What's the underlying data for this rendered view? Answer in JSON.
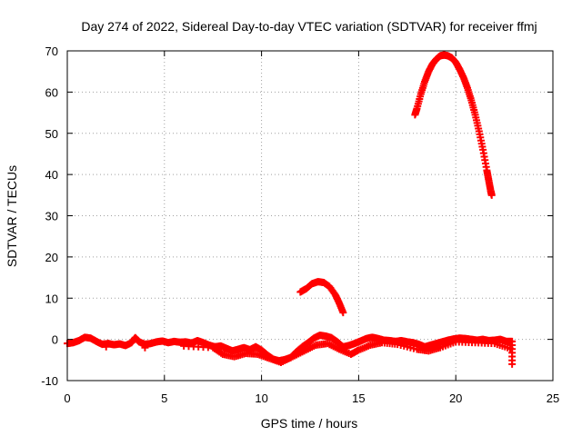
{
  "chart_data": {
    "type": "scatter",
    "title": "Day 274 of 2022, Sidereal Day-to-day VTEC variation (SDTVAR) for receiver ffmj",
    "xlabel": "GPS time / hours",
    "ylabel": "SDTVAR / TECUs",
    "xlim": [
      0,
      25
    ],
    "ylim": [
      -10,
      70
    ],
    "xticks": [
      0,
      5,
      10,
      15,
      20,
      25
    ],
    "yticks": [
      -10,
      0,
      10,
      20,
      30,
      40,
      50,
      60,
      70
    ],
    "xtick_labels": [
      "0",
      "5",
      "10",
      "15",
      "20",
      "25"
    ],
    "ytick_labels": [
      "-10",
      "0",
      "10",
      "20",
      "30",
      "40",
      "50",
      "60",
      "70"
    ],
    "grid": true,
    "marker": "plus",
    "color": "#ff0000",
    "series": [
      {
        "values": [
          [
            0.0,
            -1.0
          ],
          [
            0.3,
            -0.8
          ],
          [
            0.6,
            -0.3
          ],
          [
            0.9,
            0.5
          ],
          [
            1.2,
            0.3
          ],
          [
            1.5,
            -0.5
          ],
          [
            1.8,
            -1.2
          ],
          [
            2.1,
            -1.0
          ],
          [
            2.4,
            -1.3
          ],
          [
            2.7,
            -1.1
          ],
          [
            3.0,
            -1.5
          ],
          [
            3.3,
            -0.8
          ],
          [
            3.5,
            0.4
          ],
          [
            3.7,
            -0.6
          ],
          [
            4.0,
            -1.2
          ],
          [
            4.3,
            -1.0
          ],
          [
            4.6,
            -0.6
          ],
          [
            4.9,
            -0.4
          ],
          [
            5.2,
            -0.8
          ],
          [
            5.5,
            -0.5
          ],
          [
            5.8,
            -0.7
          ],
          [
            6.1,
            -0.6
          ],
          [
            6.4,
            -0.9
          ],
          [
            6.7,
            -0.3
          ],
          [
            7.0,
            -0.8
          ],
          [
            7.3,
            -1.4
          ],
          [
            7.6,
            -1.8
          ],
          [
            7.9,
            -1.6
          ],
          [
            8.2,
            -2.2
          ],
          [
            8.5,
            -2.8
          ],
          [
            8.8,
            -2.4
          ],
          [
            9.1,
            -2.0
          ],
          [
            9.4,
            -2.5
          ],
          [
            9.7,
            -1.8
          ],
          [
            10.0,
            -2.6
          ],
          [
            10.3,
            -3.8
          ],
          [
            10.6,
            -4.8
          ],
          [
            10.9,
            -5.2
          ],
          [
            11.2,
            -4.9
          ],
          [
            11.5,
            -4.4
          ],
          [
            11.8,
            -3.0
          ],
          [
            12.1,
            -1.8
          ],
          [
            12.4,
            -0.8
          ],
          [
            12.7,
            0.3
          ],
          [
            13.0,
            1.0
          ],
          [
            13.3,
            0.8
          ],
          [
            13.6,
            0.4
          ],
          [
            13.9,
            -0.6
          ],
          [
            14.2,
            -1.8
          ],
          [
            14.5,
            -1.5
          ],
          [
            14.8,
            -1.0
          ],
          [
            15.1,
            -0.4
          ],
          [
            15.4,
            0.2
          ],
          [
            15.7,
            0.5
          ],
          [
            16.0,
            0.2
          ],
          [
            16.3,
            -0.2
          ],
          [
            16.6,
            -0.3
          ],
          [
            16.9,
            -0.5
          ],
          [
            17.2,
            -0.3
          ],
          [
            17.5,
            -0.6
          ],
          [
            17.8,
            -0.8
          ],
          [
            18.1,
            -1.2
          ],
          [
            18.4,
            -1.8
          ],
          [
            18.7,
            -1.4
          ],
          [
            19.0,
            -1.0
          ],
          [
            19.3,
            -0.6
          ],
          [
            19.6,
            -0.2
          ],
          [
            19.9,
            0.1
          ],
          [
            20.2,
            0.3
          ],
          [
            20.5,
            0.2
          ],
          [
            20.8,
            0.0
          ],
          [
            21.1,
            -0.2
          ],
          [
            21.4,
            0.0
          ],
          [
            21.7,
            -0.3
          ],
          [
            22.0,
            -0.2
          ],
          [
            22.3,
            0.0
          ],
          [
            22.6,
            -0.5
          ],
          [
            22.9,
            -0.5
          ],
          [
            22.9,
            -6.0
          ]
        ]
      },
      {
        "values": [
          [
            2.0,
            -1.8
          ],
          [
            4.0,
            -2.0
          ],
          [
            6.0,
            -1.6
          ],
          [
            7.5,
            -2.0
          ],
          [
            8.0,
            -3.6
          ],
          [
            8.6,
            -4.2
          ],
          [
            9.2,
            -3.4
          ],
          [
            9.8,
            -3.6
          ],
          [
            10.4,
            -4.6
          ],
          [
            11.0,
            -5.6
          ],
          [
            11.6,
            -4.2
          ],
          [
            12.2,
            -2.8
          ],
          [
            12.8,
            -1.4
          ],
          [
            13.4,
            -1.0
          ],
          [
            14.0,
            -2.4
          ],
          [
            14.6,
            -3.6
          ],
          [
            15.0,
            -2.6
          ],
          [
            15.6,
            -1.4
          ],
          [
            16.2,
            -0.8
          ],
          [
            17.0,
            -1.2
          ],
          [
            18.0,
            -2.4
          ],
          [
            18.6,
            -2.8
          ],
          [
            19.2,
            -2.0
          ],
          [
            20.0,
            -0.6
          ],
          [
            21.0,
            -0.8
          ],
          [
            22.0,
            -1.0
          ],
          [
            22.8,
            -2.2
          ]
        ]
      },
      {
        "values": [
          [
            12.0,
            11.5
          ],
          [
            12.3,
            12.3
          ],
          [
            12.6,
            13.5
          ],
          [
            12.9,
            14.0
          ],
          [
            13.2,
            13.8
          ],
          [
            13.5,
            12.8
          ],
          [
            13.8,
            10.8
          ],
          [
            14.0,
            8.8
          ],
          [
            14.2,
            6.5
          ]
        ]
      },
      {
        "values": [
          [
            17.9,
            54.5
          ],
          [
            18.0,
            56.0
          ],
          [
            18.2,
            59.5
          ],
          [
            18.4,
            62.5
          ],
          [
            18.6,
            65.0
          ],
          [
            18.8,
            66.8
          ],
          [
            19.0,
            68.0
          ],
          [
            19.2,
            68.8
          ],
          [
            19.4,
            69.0
          ],
          [
            19.6,
            68.8
          ],
          [
            19.8,
            68.3
          ],
          [
            20.0,
            67.2
          ],
          [
            20.2,
            65.5
          ],
          [
            20.4,
            63.5
          ],
          [
            20.6,
            61.0
          ],
          [
            20.8,
            58.0
          ],
          [
            21.0,
            54.5
          ],
          [
            21.2,
            50.5
          ],
          [
            21.4,
            46.0
          ],
          [
            21.6,
            41.0
          ],
          [
            21.7,
            38.5
          ],
          [
            21.8,
            36.0
          ],
          [
            21.85,
            35.0
          ]
        ]
      }
    ]
  }
}
